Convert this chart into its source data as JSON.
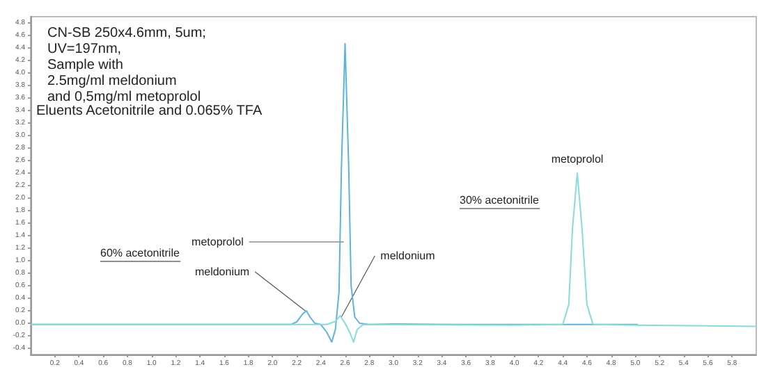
{
  "chart_data": {
    "type": "line",
    "title": "CN-SB 250x4.6mm, 5um;\nUV=197nm,\nSample with\n2.5mg/ml meldonium\nand 0,5mg/ml metoprolol",
    "annotations": [
      "Eluents Acetonitrile and 0.065% TFA",
      "60% acetonitrile",
      "30% acetonitrile",
      {
        "text": "metoprolol",
        "x": 2.59,
        "y": 1.3
      },
      {
        "text": "meldonium",
        "x": 2.27,
        "y": 0.2
      },
      {
        "text": "meldonium",
        "x": 2.57,
        "y": 0.1
      },
      {
        "text": "metoprolol",
        "x": 4.52,
        "y": 2.4
      }
    ],
    "series": [
      {
        "color": "#5ab4e0",
        "x": [
          0,
          1,
          2,
          2.15,
          2.2,
          2.25,
          2.28,
          2.31,
          2.35,
          2.4,
          2.45,
          2.49,
          2.52,
          2.55,
          2.57,
          2.6,
          2.63,
          2.65,
          2.68,
          2.72,
          2.8,
          3,
          3.5,
          4,
          5.02
        ],
        "values": [
          -0.02,
          -0.02,
          -0.02,
          -0.02,
          0.02,
          0.15,
          0.2,
          0.1,
          0,
          -0.02,
          -0.15,
          -0.3,
          -0.1,
          0.5,
          2.5,
          4.47,
          2.5,
          0.6,
          0.1,
          0,
          -0.02,
          -0.01,
          -0.02,
          -0.02,
          -0.02
        ]
      },
      {
        "color": "#86dcdc",
        "x": [
          0,
          2.45,
          2.52,
          2.56,
          2.6,
          2.64,
          2.67,
          2.7,
          2.75,
          4,
          4.4,
          4.45,
          4.48,
          4.52,
          4.56,
          4.6,
          4.65,
          5,
          6
        ],
        "values": [
          -0.02,
          -0.02,
          0.03,
          0.12,
          0,
          -0.15,
          -0.3,
          -0.1,
          -0.02,
          -0.03,
          -0.02,
          0.3,
          1.5,
          2.4,
          1.5,
          0.3,
          -0.02,
          -0.03,
          -0.05
        ]
      }
    ],
    "xlim": [
      0,
      6
    ],
    "xticks": [
      0.2,
      0.4,
      0.6,
      0.8,
      {
        "value": 1,
        "label": "1.0"
      },
      1.2,
      1.4,
      1.6,
      1.8,
      {
        "value": 2,
        "label": "2.0"
      },
      2.2,
      2.4,
      2.6,
      2.8,
      {
        "value": 3,
        "label": "3.0"
      },
      3.2,
      3.4,
      3.6,
      3.8,
      {
        "value": 4,
        "label": "4.0"
      },
      4.2,
      4.4,
      4.6,
      4.8,
      {
        "value": 5,
        "label": "5.0"
      },
      5.2,
      5.4,
      5.6,
      5.8
    ],
    "ylim": [
      -0.5,
      4.9
    ],
    "yticks": [
      -0.4,
      -0.2,
      {
        "value": 0,
        "label": "0.0"
      },
      0.2,
      0.4,
      0.6,
      0.8,
      {
        "value": 1,
        "label": "1.0"
      },
      1.2,
      1.4,
      1.6,
      1.8,
      {
        "value": 2,
        "label": "2.0"
      },
      2.2,
      2.4,
      2.6,
      2.8,
      {
        "value": 3,
        "label": "3.0"
      },
      3.2,
      3.4,
      3.6,
      3.8,
      {
        "value": 4,
        "label": "4.0"
      },
      4.2,
      4.4,
      4.6,
      4.8
    ],
    "grid": false,
    "marker": "none",
    "line_style": "solid"
  }
}
